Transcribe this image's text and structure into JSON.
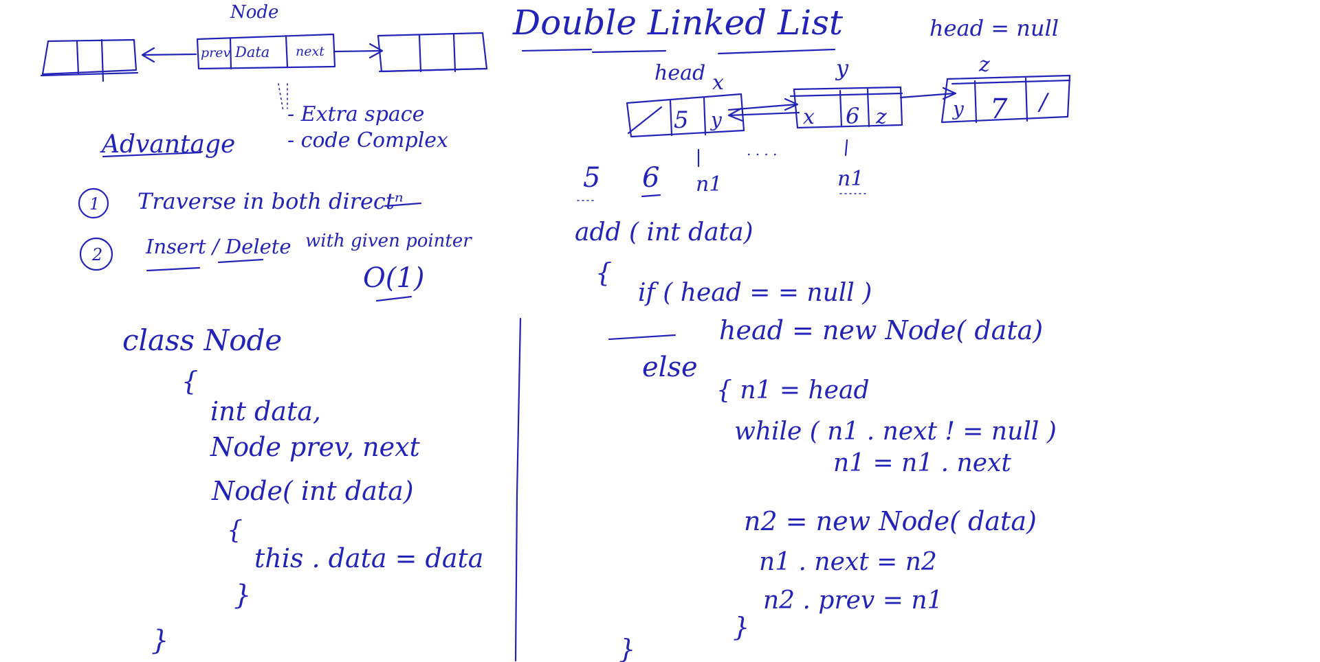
{
  "node_sketch": {
    "title": "Node",
    "fields": [
      "prev",
      "Data",
      "next"
    ]
  },
  "disadvantages": [
    "- Extra space",
    "- code Complex"
  ],
  "advantages": {
    "title": "Advantage",
    "items": [
      {
        "num": "1",
        "text": "Traverse in both directⁿ"
      },
      {
        "num": "2",
        "text": "Insert / Delete",
        "suffix": "with given pointer"
      }
    ],
    "complexity": "O(1)"
  },
  "class_code": {
    "header": "class Node",
    "lines": [
      "{",
      "int data,",
      "Node prev, next",
      "Node( int data)",
      "{",
      "this . data = data",
      "}",
      "}"
    ]
  },
  "dll": {
    "title": "Double Linked List",
    "head_null": "head = null",
    "labels": {
      "head": "head",
      "x": "x",
      "y": "y",
      "z": "z"
    },
    "nodes": [
      {
        "prev": "/",
        "data": "5",
        "next": "y"
      },
      {
        "prev": "x",
        "data": "6",
        "next": "z"
      },
      {
        "prev": "y",
        "data": "7",
        "next": "/"
      }
    ],
    "under_values": [
      "5",
      "6",
      "n1",
      ". . . .",
      "n1"
    ]
  },
  "add_code": {
    "signature": "add ( int data)",
    "open": "{",
    "if_line": "if ( head = = null )",
    "then_line": "head = new Node( data)",
    "else_kw": "else",
    "else_open": "{ n1 = head",
    "while_line": "while ( n1 . next ! = null )",
    "step_line": "n1 = n1 . next",
    "new_line": "n2 = new Node( data)",
    "link1": "n1 . next = n2",
    "link2": "n2 . prev = n1",
    "inner_close": "}",
    "close": "}"
  }
}
